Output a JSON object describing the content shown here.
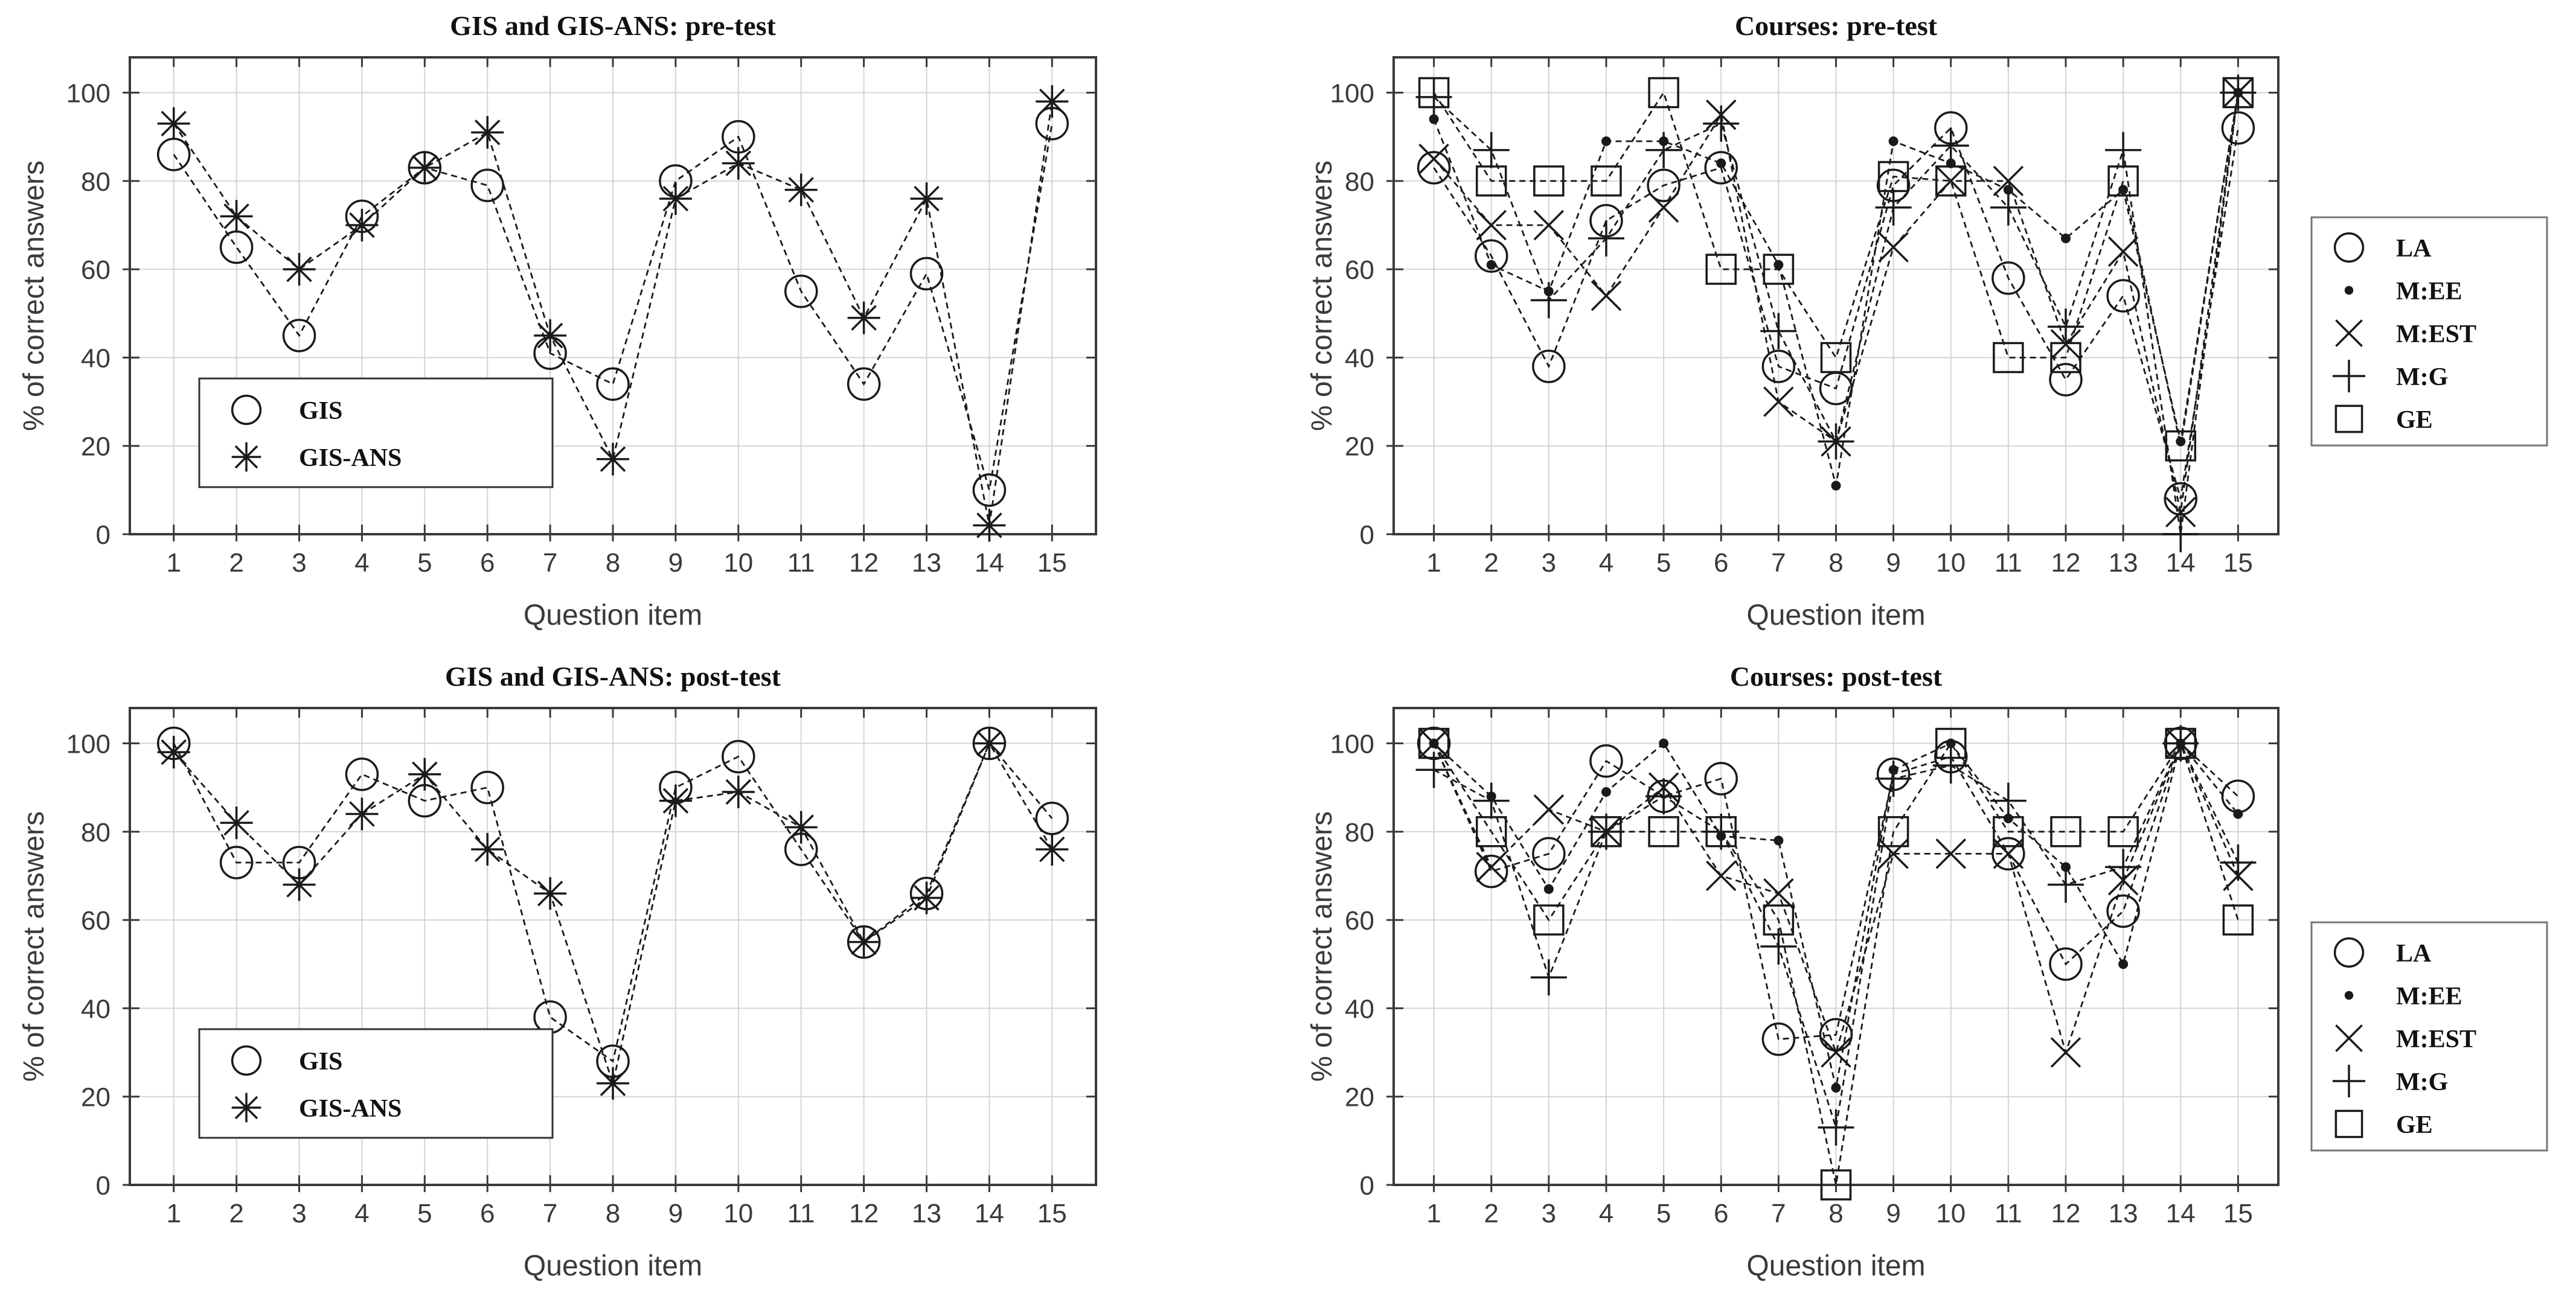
{
  "page": {
    "background": "#ffffff",
    "colors": {
      "line": "#1a1a1a",
      "grid": "#d4d4d4",
      "box": "#3a3a3a",
      "tick_label": "#3a3a3a",
      "title": "#111111"
    }
  },
  "chart_data": [
    {
      "id": "gis-pre",
      "type": "line",
      "title": "GIS and GIS-ANS: pre-test",
      "xlabel": "Question item",
      "ylabel": "% of correct answers",
      "x": [
        1,
        2,
        3,
        4,
        5,
        6,
        7,
        8,
        9,
        10,
        11,
        12,
        13,
        14,
        15
      ],
      "xticks": [
        1,
        2,
        3,
        4,
        5,
        6,
        7,
        8,
        9,
        10,
        11,
        12,
        13,
        14,
        15
      ],
      "yticks": [
        0,
        20,
        40,
        60,
        80,
        100
      ],
      "xlim": [
        0.3,
        15.7
      ],
      "ylim": [
        0,
        108
      ],
      "grid": true,
      "legend_position": "inside-bottom-left",
      "series": [
        {
          "name": "GIS",
          "marker": "circle",
          "values": [
            86,
            65,
            45,
            72,
            83,
            79,
            41,
            34,
            80,
            90,
            55,
            34,
            59,
            10,
            93
          ]
        },
        {
          "name": "GIS-ANS",
          "marker": "star",
          "values": [
            93,
            72,
            60,
            70,
            83,
            91,
            45,
            17,
            76,
            84,
            78,
            49,
            76,
            2,
            98
          ]
        }
      ]
    },
    {
      "id": "courses-pre",
      "type": "line",
      "title": "Courses: pre-test",
      "xlabel": "Question item",
      "ylabel": "% of correct answers",
      "x": [
        1,
        2,
        3,
        4,
        5,
        6,
        7,
        8,
        9,
        10,
        11,
        12,
        13,
        14,
        15
      ],
      "xticks": [
        1,
        2,
        3,
        4,
        5,
        6,
        7,
        8,
        9,
        10,
        11,
        12,
        13,
        14,
        15
      ],
      "yticks": [
        0,
        20,
        40,
        60,
        80,
        100
      ],
      "xlim": [
        0.3,
        15.7
      ],
      "ylim": [
        0,
        108
      ],
      "grid": true,
      "legend_position": "outside-right",
      "series": [
        {
          "name": "LA",
          "marker": "circle",
          "values": [
            83,
            63,
            38,
            71,
            79,
            83,
            38,
            33,
            79,
            92,
            58,
            35,
            54,
            8,
            92
          ]
        },
        {
          "name": "M:EE",
          "marker": "dot",
          "values": [
            94,
            61,
            55,
            89,
            89,
            84,
            61,
            11,
            89,
            84,
            78,
            67,
            78,
            21,
            100
          ]
        },
        {
          "name": "M:EST",
          "marker": "x",
          "values": [
            85,
            70,
            70,
            54,
            74,
            95,
            30,
            21,
            65,
            80,
            80,
            43,
            64,
            5,
            100
          ]
        },
        {
          "name": "M:G",
          "marker": "plus",
          "values": [
            99,
            87,
            53,
            67,
            87,
            93,
            46,
            21,
            74,
            88,
            74,
            47,
            87,
            0,
            100
          ]
        },
        {
          "name": "GE",
          "marker": "square",
          "values": [
            100,
            80,
            80,
            80,
            100,
            60,
            60,
            40,
            81,
            80,
            40,
            40,
            80,
            20,
            100
          ]
        }
      ]
    },
    {
      "id": "gis-post",
      "type": "line",
      "title": "GIS and GIS-ANS: post-test",
      "xlabel": "Question item",
      "ylabel": "% of correct answers",
      "x": [
        1,
        2,
        3,
        4,
        5,
        6,
        7,
        8,
        9,
        10,
        11,
        12,
        13,
        14,
        15
      ],
      "xticks": [
        1,
        2,
        3,
        4,
        5,
        6,
        7,
        8,
        9,
        10,
        11,
        12,
        13,
        14,
        15
      ],
      "yticks": [
        0,
        20,
        40,
        60,
        80,
        100
      ],
      "xlim": [
        0.3,
        15.7
      ],
      "ylim": [
        0,
        108
      ],
      "grid": true,
      "legend_position": "inside-bottom-left",
      "series": [
        {
          "name": "GIS",
          "marker": "circle",
          "values": [
            100,
            73,
            73,
            93,
            87,
            90,
            38,
            28,
            90,
            97,
            76,
            55,
            66,
            100,
            83
          ]
        },
        {
          "name": "GIS-ANS",
          "marker": "star",
          "values": [
            98,
            82,
            68,
            84,
            93,
            76,
            66,
            23,
            87,
            89,
            81,
            55,
            65,
            100,
            76
          ]
        }
      ]
    },
    {
      "id": "courses-post",
      "type": "line",
      "title": "Courses: post-test",
      "xlabel": "Question item",
      "ylabel": "% of correct answers",
      "x": [
        1,
        2,
        3,
        4,
        5,
        6,
        7,
        8,
        9,
        10,
        11,
        12,
        13,
        14,
        15
      ],
      "xticks": [
        1,
        2,
        3,
        4,
        5,
        6,
        7,
        8,
        9,
        10,
        11,
        12,
        13,
        14,
        15
      ],
      "yticks": [
        0,
        20,
        40,
        60,
        80,
        100
      ],
      "xlim": [
        0.3,
        15.7
      ],
      "ylim": [
        0,
        108
      ],
      "grid": true,
      "legend_position": "outside-right",
      "series": [
        {
          "name": "LA",
          "marker": "circle",
          "values": [
            100,
            71,
            75,
            96,
            88,
            92,
            33,
            34,
            93,
            97,
            75,
            50,
            62,
            100,
            88
          ]
        },
        {
          "name": "M:EE",
          "marker": "dot",
          "values": [
            100,
            88,
            67,
            89,
            100,
            79,
            78,
            22,
            94,
            100,
            83,
            72,
            50,
            100,
            84
          ]
        },
        {
          "name": "M:EST",
          "marker": "x",
          "values": [
            100,
            72,
            85,
            80,
            90,
            70,
            66,
            30,
            75,
            75,
            75,
            30,
            69,
            100,
            70
          ]
        },
        {
          "name": "M:G",
          "marker": "plus",
          "values": [
            94,
            87,
            47,
            80,
            88,
            80,
            54,
            13,
            92,
            95,
            87,
            68,
            72,
            100,
            73
          ]
        },
        {
          "name": "GE",
          "marker": "square",
          "values": [
            100,
            80,
            60,
            80,
            80,
            80,
            60,
            0,
            80,
            100,
            80,
            80,
            80,
            100,
            60
          ]
        }
      ]
    }
  ]
}
